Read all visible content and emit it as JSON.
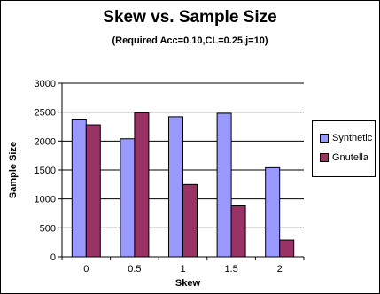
{
  "chart_data": {
    "type": "bar",
    "title": "Skew vs. Sample Size",
    "subtitle": "(Required Acc=0.10,CL=0.25,j=10)",
    "xlabel": "Skew",
    "ylabel": "Sample Size",
    "categories": [
      "0",
      "0.5",
      "1",
      "1.5",
      "2"
    ],
    "ylim": [
      0,
      3000
    ],
    "yticks": [
      "0",
      "500",
      "1000",
      "1500",
      "2000",
      "2500",
      "3000"
    ],
    "grid": true,
    "legend_position": "right",
    "series": [
      {
        "name": "Synthetic",
        "color": "#9999ff",
        "values": [
          2380,
          2040,
          2420,
          2480,
          1540
        ]
      },
      {
        "name": "Gnutella",
        "color": "#993366",
        "values": [
          2280,
          2490,
          1250,
          880,
          290
        ]
      }
    ]
  }
}
